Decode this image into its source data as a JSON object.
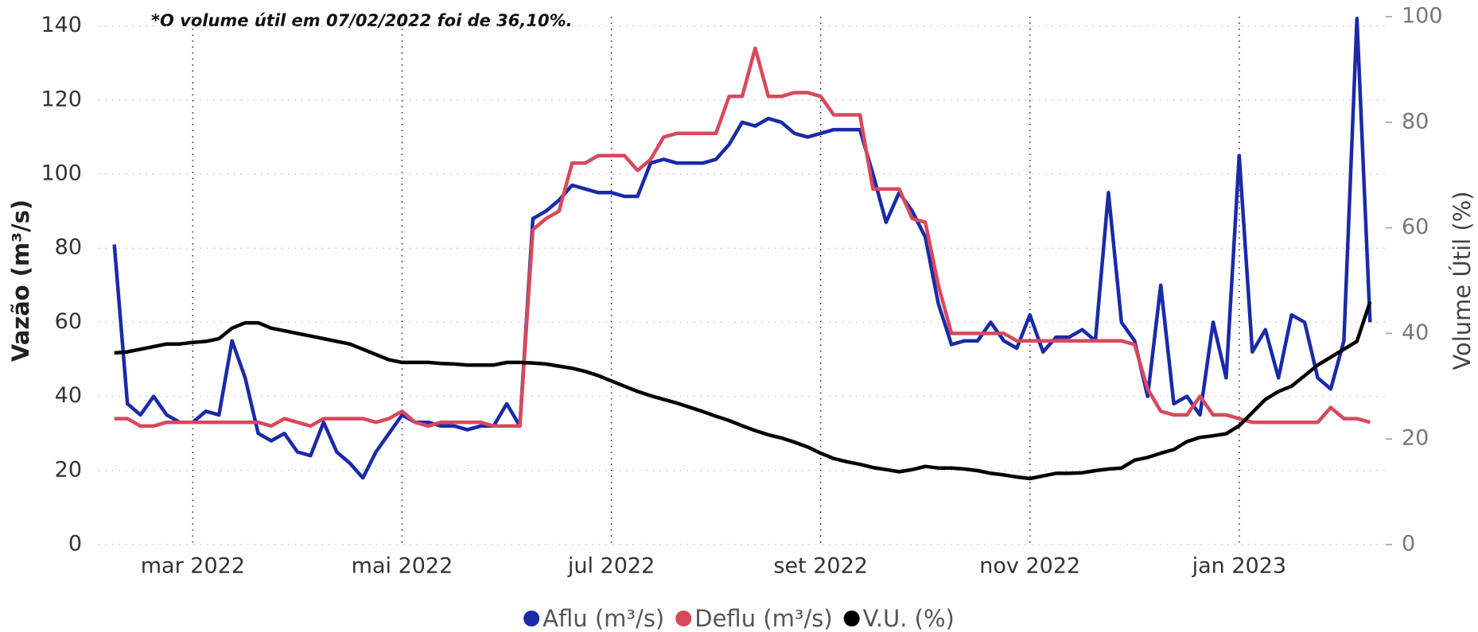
{
  "chart_data": {
    "type": "line",
    "annotation": "*O volume útil em 07/02/2022 foi de 36,10%.",
    "y_label": "Vazão (m³/s)",
    "y2_label": "Volume Útil (%)",
    "x": [
      2.25,
      2.375,
      2.5,
      2.625,
      2.75,
      2.875,
      3,
      3.125,
      3.25,
      3.375,
      3.5,
      3.625,
      3.75,
      3.875,
      4,
      4.125,
      4.25,
      4.375,
      4.5,
      4.625,
      4.75,
      4.875,
      5,
      5.125,
      5.25,
      5.375,
      5.5,
      5.625,
      5.75,
      5.875,
      6,
      6.125,
      6.25,
      6.375,
      6.5,
      6.625,
      6.75,
      6.875,
      7,
      7.125,
      7.25,
      7.375,
      7.5,
      7.625,
      7.75,
      7.875,
      8,
      8.125,
      8.25,
      8.375,
      8.5,
      8.625,
      8.75,
      8.875,
      9,
      9.125,
      9.25,
      9.375,
      9.5,
      9.625,
      9.75,
      9.875,
      10,
      10.125,
      10.25,
      10.375,
      10.5,
      10.625,
      10.75,
      10.875,
      11,
      11.125,
      11.25,
      11.375,
      11.5,
      11.625,
      11.75,
      11.875,
      12,
      12.125,
      12.25,
      12.375,
      12.5,
      12.625,
      12.75,
      12.875,
      13,
      13.125,
      13.25,
      13.375,
      13.5,
      13.625,
      13.75,
      13.875,
      14,
      14.125,
      14.25
    ],
    "xlim": [
      2.1,
      14.4
    ],
    "xticks": [
      {
        "value": 3,
        "label": "mar 2022"
      },
      {
        "value": 5,
        "label": "mai 2022"
      },
      {
        "value": 7,
        "label": "jul 2022"
      },
      {
        "value": 9,
        "label": "set 2022"
      },
      {
        "value": 11,
        "label": "nov 2022"
      },
      {
        "value": 13,
        "label": "jan 2023"
      }
    ],
    "ylim": [
      0,
      142.5
    ],
    "yticks": [
      0,
      20,
      40,
      60,
      80,
      100,
      120,
      140
    ],
    "y2lim": [
      0,
      100
    ],
    "y2ticks": [
      0,
      20,
      40,
      60,
      80,
      100
    ],
    "grid": true,
    "legend": "bottom",
    "series": [
      {
        "name": "Aflu (m³/s)",
        "color": "#1a2aa8",
        "values": [
          81,
          38,
          35,
          40,
          35,
          33,
          33,
          36,
          35,
          55,
          45,
          30,
          28,
          30,
          25,
          24,
          33,
          25,
          22,
          18,
          25,
          30,
          35,
          33,
          33,
          32,
          32,
          31,
          32,
          32,
          38,
          32,
          88,
          90,
          93,
          97,
          96,
          95,
          95,
          94,
          94,
          103,
          104,
          103,
          103,
          103,
          104,
          108,
          114,
          113,
          115,
          114,
          111,
          110,
          111,
          112,
          112,
          112,
          100,
          87,
          95,
          90,
          83,
          65,
          54,
          55,
          55,
          60,
          55,
          53,
          62,
          52,
          56,
          56,
          58,
          55,
          95,
          60,
          55,
          40,
          70,
          38,
          40,
          35,
          60,
          45,
          105,
          52,
          58,
          45,
          62,
          60,
          45,
          42,
          55,
          142,
          60
        ]
      },
      {
        "name": "Deflu (m³/s)",
        "color": "#d9485a",
        "values": [
          34,
          34,
          32,
          32,
          33,
          33,
          33,
          33,
          33,
          33,
          33,
          33,
          32,
          34,
          33,
          32,
          34,
          34,
          34,
          34,
          33,
          34,
          36,
          33,
          32,
          33,
          33,
          33,
          33,
          32,
          32,
          32,
          85,
          88,
          90,
          103,
          103,
          105,
          105,
          105,
          101,
          104,
          110,
          111,
          111,
          111,
          111,
          121,
          121,
          134,
          121,
          121,
          122,
          122,
          121,
          116,
          116,
          116,
          96,
          96,
          96,
          88,
          87,
          70,
          57,
          57,
          57,
          57,
          57,
          55,
          55,
          55,
          55,
          55,
          55,
          55,
          55,
          55,
          54,
          42,
          36,
          35,
          35,
          40,
          35,
          35,
          34,
          33,
          33,
          33,
          33,
          33,
          33,
          37,
          34,
          34,
          33
        ]
      },
      {
        "name": "V.U. (%)",
        "color": "#000000",
        "axis": "y2",
        "values": [
          36.3,
          36.5,
          37,
          37.5,
          38,
          38,
          38.3,
          38.5,
          39,
          41,
          42,
          42,
          41,
          40.5,
          40,
          39.5,
          39,
          38.5,
          38,
          37,
          36,
          35,
          34.5,
          34.5,
          34.5,
          34.3,
          34.2,
          34,
          34,
          34,
          34.5,
          34.5,
          34.4,
          34.2,
          33.8,
          33.4,
          32.8,
          32,
          31,
          30,
          29,
          28.2,
          27.5,
          26.8,
          26,
          25.2,
          24.3,
          23.5,
          22.5,
          21.6,
          20.8,
          20.2,
          19.4,
          18.5,
          17.3,
          16.3,
          15.7,
          15.2,
          14.6,
          14.2,
          13.8,
          14.2,
          14.8,
          14.5,
          14.5,
          14.3,
          14,
          13.5,
          13.2,
          12.8,
          12.5,
          13,
          13.5,
          13.5,
          13.6,
          14,
          14.3,
          14.5,
          16,
          16.5,
          17.3,
          18,
          19.5,
          20.3,
          20.6,
          21,
          22.5,
          25,
          27.5,
          29,
          30,
          32,
          34,
          35.5,
          37,
          38.5,
          46
        ]
      }
    ]
  }
}
